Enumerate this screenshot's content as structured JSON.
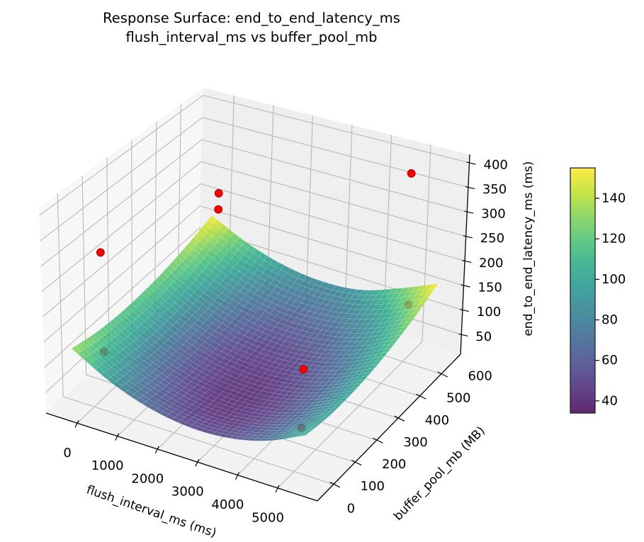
{
  "chart_data": {
    "type": "surface3d",
    "title": "Response Surface: end_to_end_latency_ms",
    "subtitle": "flush_interval_ms vs buffer_pool_mb",
    "xlabel": "flush_interval_ms (ms)",
    "ylabel": "buffer_pool_mb (MB)",
    "zlabel": "end_to_end_latency_ms (ms)",
    "xlim": [
      -780,
      5990
    ],
    "ylim": [
      25,
      690
    ],
    "zlim": [
      10,
      417
    ],
    "xticks": [
      {
        "value": 0,
        "label": "0"
      },
      {
        "value": 1000,
        "label": "1000"
      },
      {
        "value": 2000,
        "label": "2000"
      },
      {
        "value": 3000,
        "label": "3000"
      },
      {
        "value": 4000,
        "label": "4000"
      },
      {
        "value": 5000,
        "label": "5000"
      }
    ],
    "yticks": [
      {
        "value": 0,
        "label": "0"
      },
      {
        "value": 100,
        "label": "100"
      },
      {
        "value": 200,
        "label": "200"
      },
      {
        "value": 300,
        "label": "300"
      },
      {
        "value": 400,
        "label": "400"
      },
      {
        "value": 500,
        "label": "500"
      },
      {
        "value": 600,
        "label": "600"
      }
    ],
    "zticks": [
      {
        "value": 50,
        "label": "50"
      },
      {
        "value": 100,
        "label": "100"
      },
      {
        "value": 150,
        "label": "150"
      },
      {
        "value": 200,
        "label": "200"
      },
      {
        "value": 250,
        "label": "250"
      },
      {
        "value": 300,
        "label": "300"
      },
      {
        "value": 350,
        "label": "350"
      },
      {
        "value": 400,
        "label": "400"
      }
    ],
    "grid": true,
    "surface": {
      "colormap": "viridis",
      "clim": [
        34,
        155
      ],
      "x": [
        -300,
        667,
        1633,
        2600,
        3567,
        4533,
        5500
      ],
      "y": [
        60,
        160,
        260,
        360,
        460,
        560,
        660
      ],
      "z": [
        [
          135,
          92,
          65,
          53,
          56,
          74,
          108
        ],
        [
          124,
          83,
          56,
          44,
          48,
          67,
          101
        ],
        [
          119,
          78,
          52,
          42,
          46,
          66,
          101
        ],
        [
          120,
          80,
          54,
          45,
          50,
          70,
          106
        ],
        [
          126,
          86,
          62,
          53,
          59,
          80,
          117
        ],
        [
          138,
          99,
          75,
          67,
          74,
          96,
          133
        ],
        [
          155,
          117,
          94,
          86,
          94,
          122,
          155
        ]
      ]
    },
    "scatter": {
      "color": "#ff0000",
      "edgecolor": "#8b0000",
      "points": [
        {
          "x": 300,
          "y": 90,
          "z": 328,
          "behind_surface": false
        },
        {
          "x": 330,
          "y": 580,
          "z": 255,
          "behind_surface": false
        },
        {
          "x": 330,
          "y": 580,
          "z": 220,
          "behind_surface": false
        },
        {
          "x": 5150,
          "y": 580,
          "z": 405,
          "behind_surface": false
        },
        {
          "x": 3900,
          "y": 340,
          "z": 80,
          "behind_surface": false
        },
        {
          "x": 4800,
          "y": 170,
          "z": 60,
          "behind_surface": true
        },
        {
          "x": 330,
          "y": 90,
          "z": 132,
          "behind_surface": true
        },
        {
          "x": 5200,
          "y": 580,
          "z": 140,
          "behind_surface": true
        }
      ]
    },
    "colorbar": {
      "ticks": [
        {
          "value": 40,
          "label": "40"
        },
        {
          "value": 60,
          "label": "60"
        },
        {
          "value": 80,
          "label": "80"
        },
        {
          "value": 100,
          "label": "100"
        },
        {
          "value": 120,
          "label": "120"
        },
        {
          "value": 140,
          "label": "140"
        }
      ]
    },
    "colors": {
      "pane_floor": "#f2f2f2",
      "pane_left": "#f7f7f7",
      "pane_back": "#efefef",
      "grid": "#b8b8b8"
    }
  }
}
